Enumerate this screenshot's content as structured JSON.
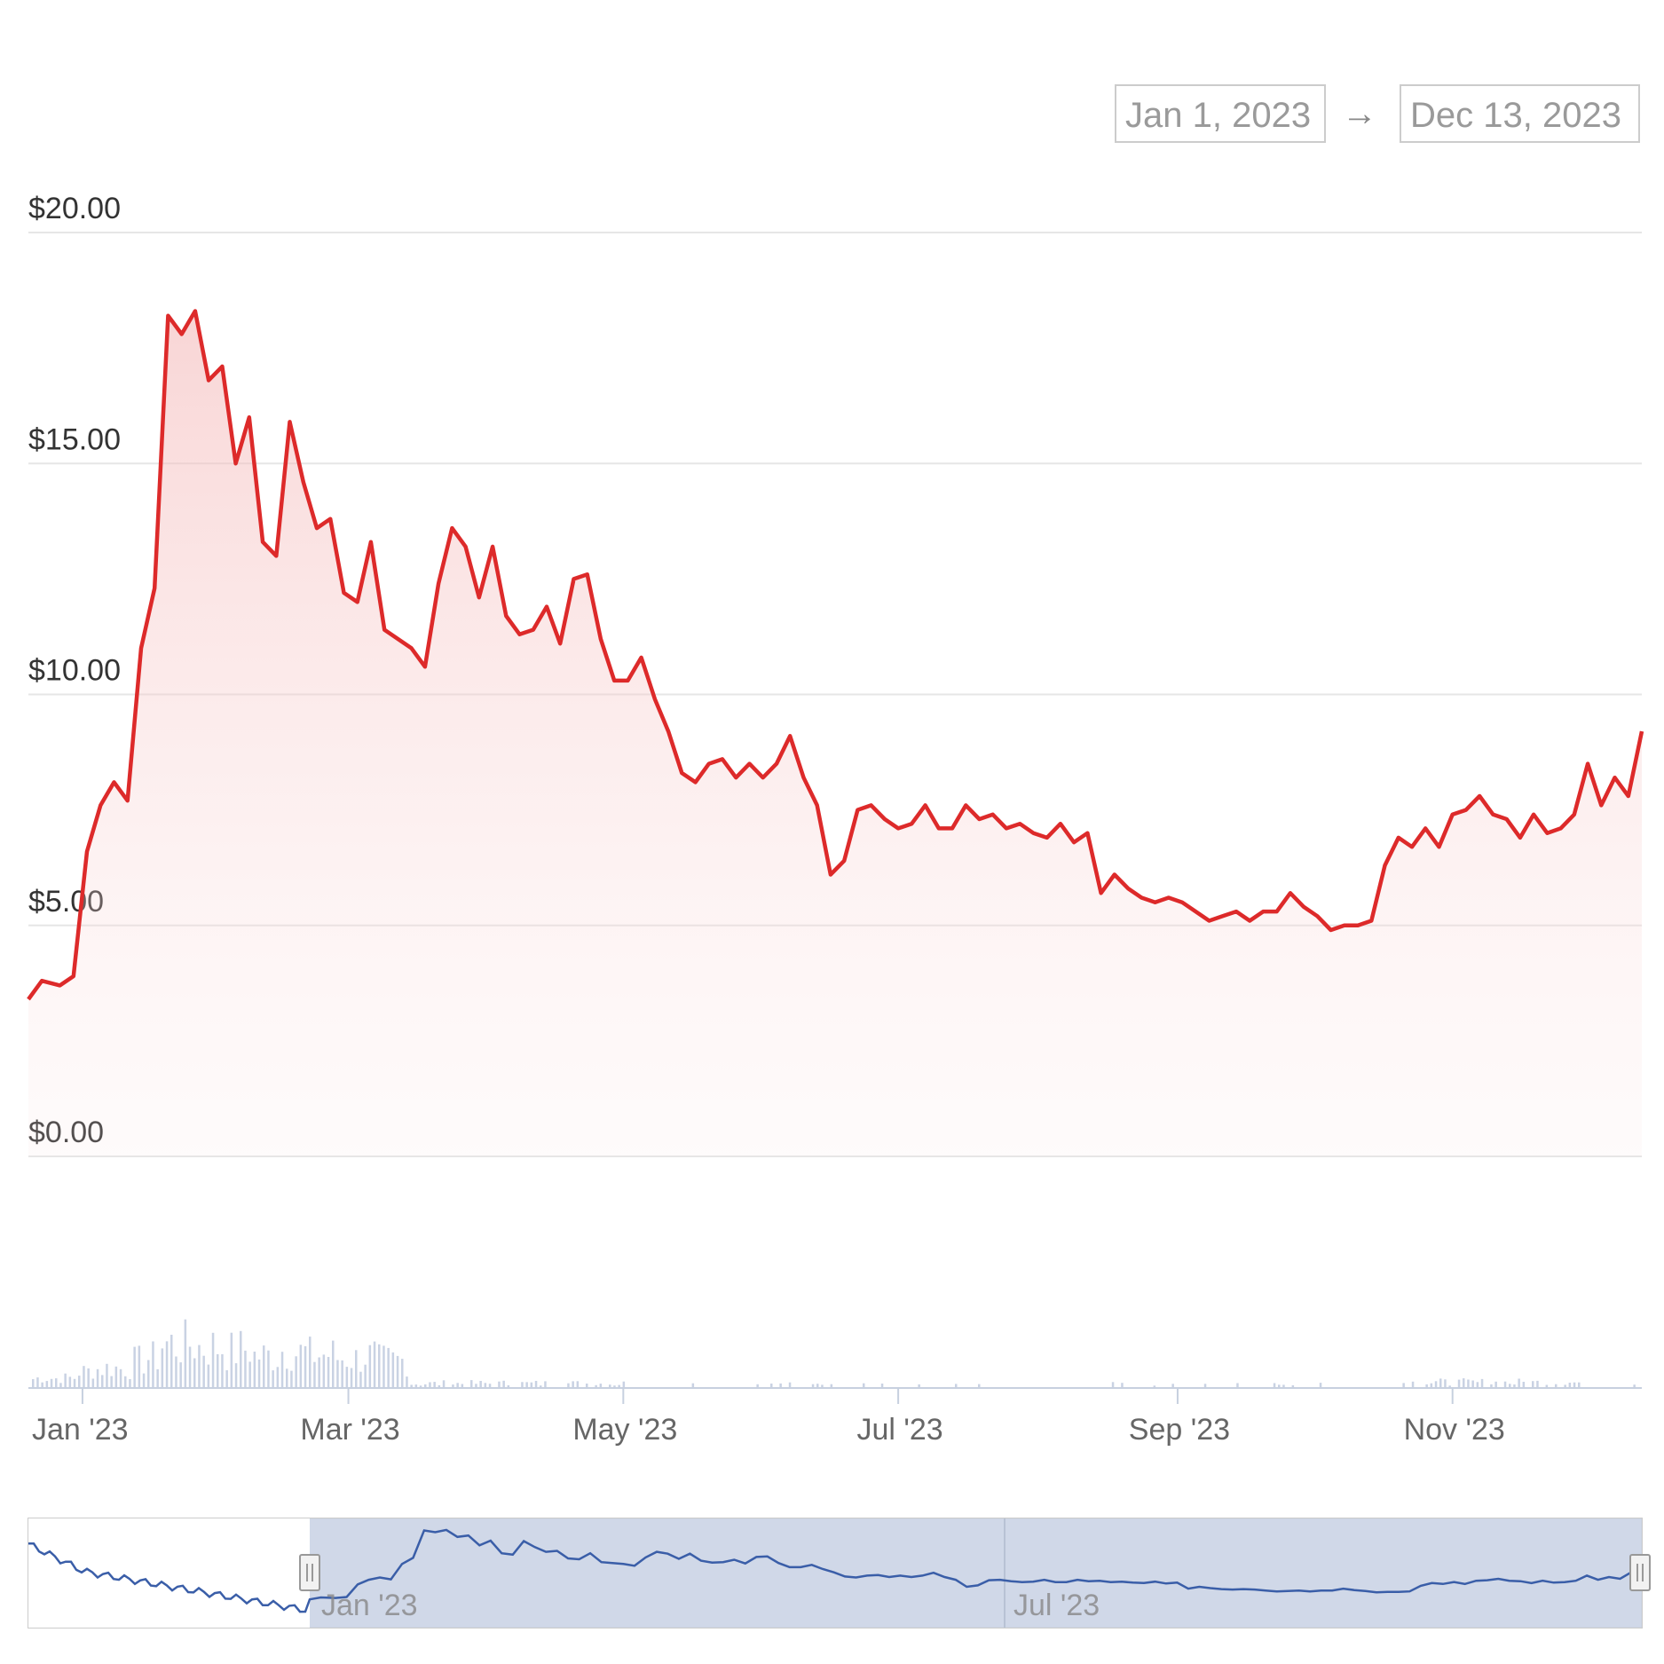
{
  "date_range": {
    "start": "Jan 1, 2023",
    "arrow": "→",
    "end": "Dec 13, 2023"
  },
  "colors": {
    "price_line": "#dd2a2a",
    "price_fill": "#f6cccc",
    "volume": "#c9d2e3",
    "navigator_line": "#3a5ea8",
    "navigator_selection": "#ccd5e6",
    "gridline": "#e6e6e6"
  },
  "chart_data": {
    "type": "line",
    "title": "",
    "ylabel": "",
    "xlabel": "",
    "y_tick_labels": [
      "$0.00",
      "$5.00",
      "$10.00",
      "$15.00",
      "$20.00"
    ],
    "y_ticks": [
      0,
      5,
      10,
      15,
      20
    ],
    "ylim": [
      0,
      20
    ],
    "x_tick_labels": [
      "Jan '23",
      "Mar '23",
      "May '23",
      "Jul '23",
      "Sep '23",
      "Nov '23"
    ],
    "x_tick_dates": [
      "2023-01-01",
      "2023-03-01",
      "2023-05-01",
      "2023-07-01",
      "2023-09-01",
      "2023-11-01"
    ],
    "xlim": [
      "2022-12-20",
      "2023-12-13"
    ],
    "grid": true,
    "legend": "none",
    "series": [
      {
        "x": [
          "2022-12-20",
          "2022-12-23",
          "2022-12-27",
          "2022-12-30",
          "2023-01-02",
          "2023-01-05",
          "2023-01-08",
          "2023-01-11",
          "2023-01-14",
          "2023-01-17",
          "2023-01-20",
          "2023-01-23",
          "2023-01-26",
          "2023-01-29",
          "2023-02-01",
          "2023-02-04",
          "2023-02-07",
          "2023-02-10",
          "2023-02-13",
          "2023-02-16",
          "2023-02-19",
          "2023-02-22",
          "2023-02-25",
          "2023-02-28",
          "2023-03-03",
          "2023-03-06",
          "2023-03-09",
          "2023-03-12",
          "2023-03-15",
          "2023-03-18",
          "2023-03-21",
          "2023-03-24",
          "2023-03-27",
          "2023-03-30",
          "2023-04-02",
          "2023-04-05",
          "2023-04-08",
          "2023-04-11",
          "2023-04-14",
          "2023-04-17",
          "2023-04-20",
          "2023-04-23",
          "2023-04-26",
          "2023-04-29",
          "2023-05-02",
          "2023-05-05",
          "2023-05-08",
          "2023-05-11",
          "2023-05-14",
          "2023-05-17",
          "2023-05-20",
          "2023-05-23",
          "2023-05-26",
          "2023-05-29",
          "2023-06-01",
          "2023-06-04",
          "2023-06-07",
          "2023-06-10",
          "2023-06-13",
          "2023-06-16",
          "2023-06-19",
          "2023-06-22",
          "2023-06-25",
          "2023-06-28",
          "2023-07-01",
          "2023-07-04",
          "2023-07-07",
          "2023-07-10",
          "2023-07-13",
          "2023-07-16",
          "2023-07-19",
          "2023-07-22",
          "2023-07-25",
          "2023-07-28",
          "2023-07-31",
          "2023-08-03",
          "2023-08-06",
          "2023-08-09",
          "2023-08-12",
          "2023-08-15",
          "2023-08-18",
          "2023-08-21",
          "2023-08-24",
          "2023-08-27",
          "2023-08-30",
          "2023-09-02",
          "2023-09-05",
          "2023-09-08",
          "2023-09-11",
          "2023-09-14",
          "2023-09-17",
          "2023-09-20",
          "2023-09-23",
          "2023-09-26",
          "2023-09-29",
          "2023-10-02",
          "2023-10-05",
          "2023-10-08",
          "2023-10-11",
          "2023-10-14",
          "2023-10-17",
          "2023-10-20",
          "2023-10-23",
          "2023-10-26",
          "2023-10-29",
          "2023-11-01",
          "2023-11-04",
          "2023-11-07",
          "2023-11-10",
          "2023-11-13",
          "2023-11-16",
          "2023-11-19",
          "2023-11-22",
          "2023-11-25",
          "2023-11-28",
          "2023-12-01",
          "2023-12-04",
          "2023-12-07",
          "2023-12-10",
          "2023-12-13"
        ],
        "y": [
          3.4,
          3.8,
          3.7,
          3.9,
          6.6,
          7.6,
          8.1,
          7.7,
          11.0,
          12.3,
          18.2,
          17.8,
          18.3,
          16.8,
          17.1,
          15.0,
          16.0,
          13.3,
          13.0,
          15.9,
          14.6,
          13.6,
          13.8,
          12.2,
          12.0,
          13.3,
          11.4,
          11.2,
          11.0,
          10.6,
          12.4,
          13.6,
          13.2,
          12.1,
          13.2,
          11.7,
          11.3,
          11.4,
          11.9,
          11.1,
          12.5,
          12.6,
          11.2,
          10.3,
          10.3,
          10.8,
          9.9,
          9.2,
          8.3,
          8.1,
          8.5,
          8.6,
          8.2,
          8.5,
          8.2,
          8.5,
          9.1,
          8.2,
          7.6,
          6.1,
          6.4,
          7.5,
          7.6,
          7.3,
          7.1,
          7.2,
          7.6,
          7.1,
          7.1,
          7.6,
          7.3,
          7.4,
          7.1,
          7.2,
          7.0,
          6.9,
          7.2,
          6.8,
          7.0,
          5.7,
          6.1,
          5.8,
          5.6,
          5.5,
          5.6,
          5.5,
          5.3,
          5.1,
          5.2,
          5.3,
          5.1,
          5.3,
          5.3,
          5.7,
          5.4,
          5.2,
          4.9,
          5.0,
          5.0,
          5.1,
          6.3,
          6.9,
          6.7,
          7.1,
          6.7,
          7.4,
          7.5,
          7.8,
          7.4,
          7.3,
          6.9,
          7.4,
          7.0,
          7.1,
          7.4,
          8.5,
          7.6,
          8.2,
          7.8,
          9.2
        ]
      }
    ]
  }
}
